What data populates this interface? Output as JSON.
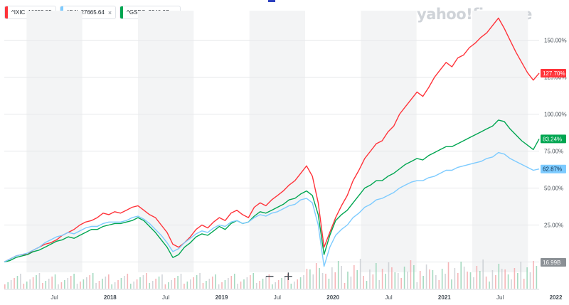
{
  "brand": "yahoo!finance",
  "legend": [
    {
      "symbol": "^IXIC",
      "value": "10853.55",
      "color": "#ff333a",
      "closable": false
    },
    {
      "symbol": "^DJI",
      "value": "27665.64",
      "color": "#7dcbff",
      "closable": true
    },
    {
      "symbol": "^GSPC",
      "value": "3340.97",
      "color": "#00a651",
      "closable": true
    }
  ],
  "close_symbol": "×",
  "zoom": {
    "out": "−",
    "in": "+"
  },
  "chart_data": {
    "type": "line",
    "x_ticks": [
      "Jul",
      "2018",
      "Jul",
      "2019",
      "Jul",
      "2020",
      "Jul",
      "2021",
      "Jul",
      "2022"
    ],
    "y_ticks": [
      "0.00%",
      "25.00%",
      "50.00%",
      "75.00%",
      "100.00%",
      "125.00%",
      "150.00%"
    ],
    "ylim": [
      -7,
      170
    ],
    "y_axis_side": "right",
    "grid": "horizontal",
    "shaded_periods": "alternating half-years",
    "series": [
      {
        "name": "^IXIC",
        "color": "#ff333a",
        "last_label": "127.70%",
        "values": [
          0,
          2,
          4,
          5,
          5,
          8,
          10,
          12,
          13,
          15,
          18,
          20,
          22,
          25,
          27,
          28,
          30,
          33,
          32,
          34,
          33,
          35,
          37,
          38,
          35,
          32,
          30,
          25,
          20,
          12,
          10,
          13,
          17,
          22,
          25,
          23,
          27,
          30,
          28,
          33,
          35,
          32,
          30,
          37,
          40,
          38,
          42,
          45,
          48,
          52,
          55,
          60,
          65,
          58,
          40,
          10,
          20,
          30,
          38,
          45,
          55,
          62,
          70,
          75,
          80,
          82,
          88,
          92,
          100,
          105,
          110,
          115,
          112,
          118,
          125,
          130,
          135,
          132,
          138,
          140,
          145,
          148,
          152,
          155,
          160,
          165,
          158,
          150,
          142,
          135,
          128,
          123,
          127.7
        ]
      },
      {
        "name": "^GSPC",
        "color": "#00a651",
        "last_label": "83.24%",
        "values": [
          0,
          1,
          3,
          4,
          5,
          7,
          8,
          10,
          12,
          14,
          15,
          17,
          16,
          18,
          20,
          22,
          22,
          24,
          25,
          26,
          26,
          27,
          28,
          30,
          28,
          24,
          20,
          15,
          10,
          3,
          5,
          10,
          13,
          17,
          19,
          18,
          21,
          24,
          22,
          26,
          28,
          26,
          27,
          31,
          34,
          33,
          35,
          37,
          39,
          42,
          43,
          46,
          48,
          45,
          32,
          5,
          18,
          28,
          32,
          35,
          40,
          45,
          50,
          52,
          55,
          55,
          58,
          60,
          63,
          66,
          68,
          70,
          69,
          72,
          74,
          76,
          78,
          78,
          80,
          82,
          84,
          86,
          88,
          90,
          92,
          96,
          95,
          90,
          86,
          82,
          79,
          76,
          83.24
        ]
      },
      {
        "name": "^DJI",
        "color": "#7dcbff",
        "last_label": "62.87%",
        "values": [
          0,
          2,
          4,
          5,
          6,
          8,
          10,
          13,
          15,
          17,
          18,
          20,
          19,
          21,
          23,
          24,
          24,
          26,
          27,
          27,
          27,
          28,
          30,
          31,
          29,
          26,
          22,
          18,
          13,
          7,
          9,
          13,
          16,
          19,
          21,
          20,
          23,
          25,
          24,
          27,
          28,
          26,
          27,
          30,
          32,
          31,
          33,
          34,
          36,
          38,
          39,
          42,
          43,
          40,
          25,
          -3,
          10,
          18,
          22,
          25,
          30,
          33,
          37,
          39,
          42,
          43,
          45,
          47,
          50,
          52,
          54,
          55,
          55,
          57,
          58,
          60,
          62,
          62,
          64,
          65,
          66,
          67,
          68,
          70,
          71,
          74,
          73,
          70,
          68,
          66,
          64,
          62,
          62.87
        ]
      }
    ],
    "volume_label": "16.99B"
  }
}
